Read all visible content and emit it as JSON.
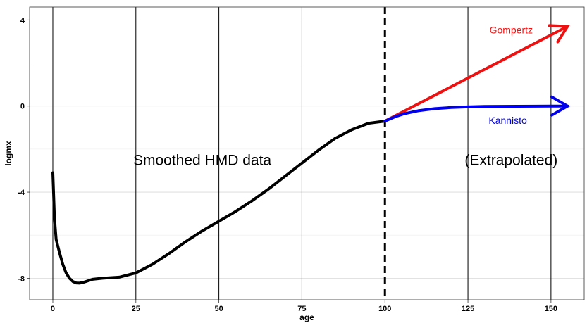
{
  "chart_data": {
    "type": "line",
    "xlabel": "age",
    "ylabel": "logmx",
    "xlim": [
      -7,
      160
    ],
    "ylim": [
      -9,
      4.6
    ],
    "x_ticks": [
      0,
      25,
      50,
      75,
      100,
      125,
      150
    ],
    "y_ticks": [
      -8,
      -4,
      0,
      4
    ],
    "grid": "horizontal major and minor lines; vertical lines at x ticks",
    "vline_dashed": 100,
    "series": [
      {
        "name": "",
        "color": "#000000",
        "x": [
          0,
          0.5,
          1,
          2,
          3,
          4,
          5,
          6,
          7,
          8,
          9,
          10,
          12,
          15,
          20,
          25,
          30,
          35,
          40,
          45,
          50,
          55,
          60,
          65,
          70,
          75,
          80,
          85,
          90,
          95,
          100
        ],
        "y": [
          -3.1,
          -5.2,
          -6.2,
          -6.8,
          -7.35,
          -7.75,
          -8.0,
          -8.15,
          -8.22,
          -8.23,
          -8.2,
          -8.15,
          -8.05,
          -8.0,
          -7.95,
          -7.75,
          -7.35,
          -6.85,
          -6.3,
          -5.8,
          -5.35,
          -4.9,
          -4.4,
          -3.85,
          -3.25,
          -2.65,
          -2.05,
          -1.5,
          -1.1,
          -0.8,
          -0.7
        ]
      },
      {
        "name": "Gompertz",
        "color": "#ee1111",
        "x": [
          100,
          155
        ],
        "y": [
          -0.7,
          3.7
        ]
      },
      {
        "name": "Kannisto",
        "color": "#0000ee",
        "x": [
          100,
          103,
          106,
          110,
          115,
          120,
          125,
          130,
          140,
          150,
          155
        ],
        "y": [
          -0.7,
          -0.5,
          -0.35,
          -0.22,
          -0.12,
          -0.07,
          -0.04,
          -0.02,
          -0.01,
          0.0,
          0.0
        ]
      }
    ],
    "annotations": [
      {
        "text": "Gompertz",
        "x": 138,
        "y": 3.5,
        "color": "#ee1111",
        "size": "small"
      },
      {
        "text": "Kannisto",
        "x": 137,
        "y": -0.7,
        "color": "#0000ee",
        "size": "small"
      },
      {
        "text": "Smoothed HMD data",
        "x": 45,
        "y": -2.55,
        "color": "#000000",
        "size": "large"
      },
      {
        "text": "(Extrapolated)",
        "x": 138,
        "y": -2.55,
        "color": "#000000",
        "size": "large"
      }
    ]
  }
}
